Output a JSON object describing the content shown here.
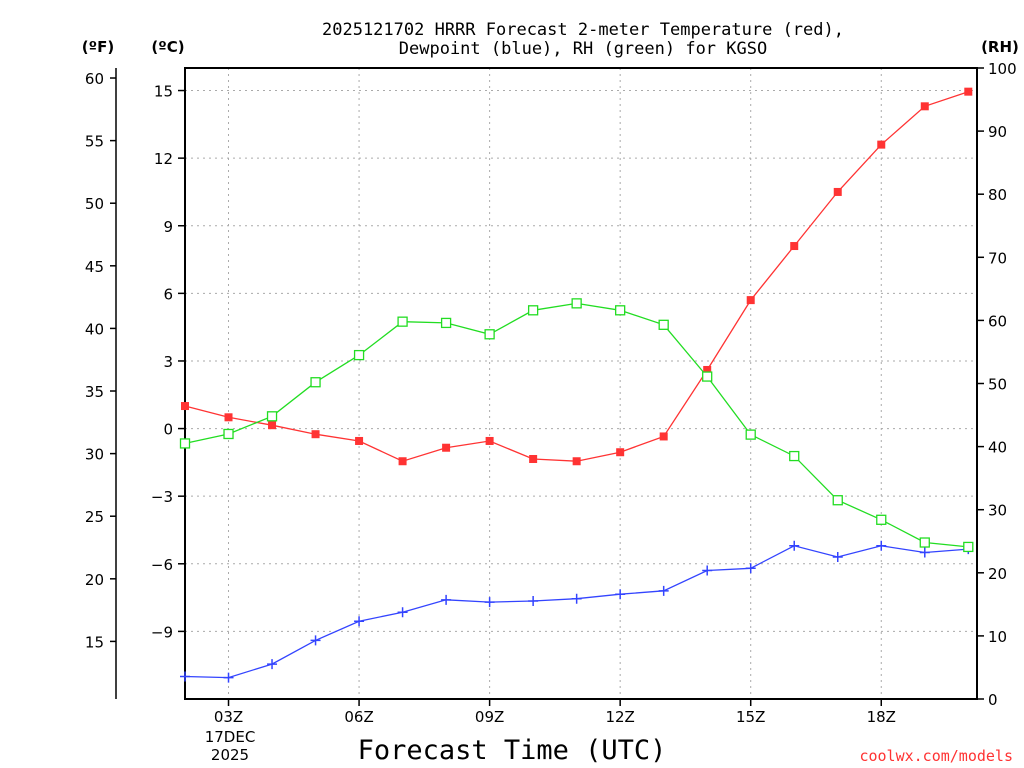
{
  "chart_data": {
    "type": "line",
    "title_line1": "2025121702 HRRR Forecast 2-meter Temperature (red),",
    "title_line2": "Dewpoint (blue), RH (green) for KGSO",
    "unit_f": "(ºF)",
    "unit_c": "(ºC)",
    "unit_rh": "(RH)",
    "xlabel": "Forecast Time (UTC)",
    "date_label": [
      "17DEC",
      "2025"
    ],
    "credit": "coolwx.com/models",
    "x": [
      2,
      3,
      4,
      5,
      6,
      7,
      8,
      9,
      10,
      11,
      12,
      13,
      14,
      15,
      16,
      17,
      18,
      19,
      20
    ],
    "xlim": [
      2,
      20.2
    ],
    "x_ticks": [
      3,
      6,
      9,
      12,
      15,
      18
    ],
    "x_tick_labels": [
      "03Z",
      "06Z",
      "09Z",
      "12Z",
      "15Z",
      "18Z"
    ],
    "celsius_axis": {
      "range": [
        -12,
        16
      ],
      "ticks": [
        15,
        12,
        9,
        6,
        3,
        0,
        -3,
        -6,
        -9
      ],
      "tick_labels": [
        "15",
        "12",
        "9",
        "6",
        "3",
        "0",
        "−3",
        "−6",
        "−9"
      ]
    },
    "fahrenheit_axis": {
      "ticks": [
        60,
        55,
        50,
        45,
        40,
        35,
        30,
        25,
        20,
        15
      ],
      "tick_labels": [
        "60",
        "55",
        "50",
        "45",
        "40",
        "35",
        "30",
        "25",
        "20",
        "15"
      ]
    },
    "rh_axis": {
      "range": [
        0,
        100
      ],
      "ticks": [
        100,
        90,
        80,
        70,
        60,
        50,
        40,
        30,
        20,
        10,
        0
      ],
      "tick_labels": [
        "100",
        "90",
        "80",
        "70",
        "60",
        "50",
        "40",
        "30",
        "20",
        "10",
        "0"
      ]
    },
    "series": [
      {
        "name": "Temperature",
        "units": "C",
        "color": "#ff3333",
        "marker": "filled-square",
        "values": [
          1.0,
          0.5,
          0.15,
          -0.25,
          -0.55,
          -1.45,
          -0.85,
          -0.55,
          -1.35,
          -1.45,
          -1.05,
          -0.35,
          2.6,
          5.7,
          8.1,
          10.5,
          12.6,
          14.3,
          14.95
        ]
      },
      {
        "name": "Dewpoint",
        "units": "C",
        "color": "#3344ff",
        "marker": "plus",
        "values": [
          -11.0,
          -11.05,
          -10.45,
          -9.4,
          -8.55,
          -8.15,
          -7.6,
          -7.7,
          -7.65,
          -7.55,
          -7.35,
          -7.2,
          -6.3,
          -6.2,
          -5.2,
          -5.7,
          -5.2,
          -5.5,
          -5.35
        ]
      },
      {
        "name": "RH",
        "units": "%",
        "color": "#22dd22",
        "marker": "open-square",
        "values": [
          40.5,
          42.0,
          44.8,
          50.2,
          54.5,
          59.8,
          59.6,
          57.8,
          61.6,
          62.7,
          61.6,
          59.3,
          51.1,
          41.9,
          38.5,
          31.5,
          28.4,
          24.8,
          24.1
        ]
      }
    ],
    "grid": true
  }
}
